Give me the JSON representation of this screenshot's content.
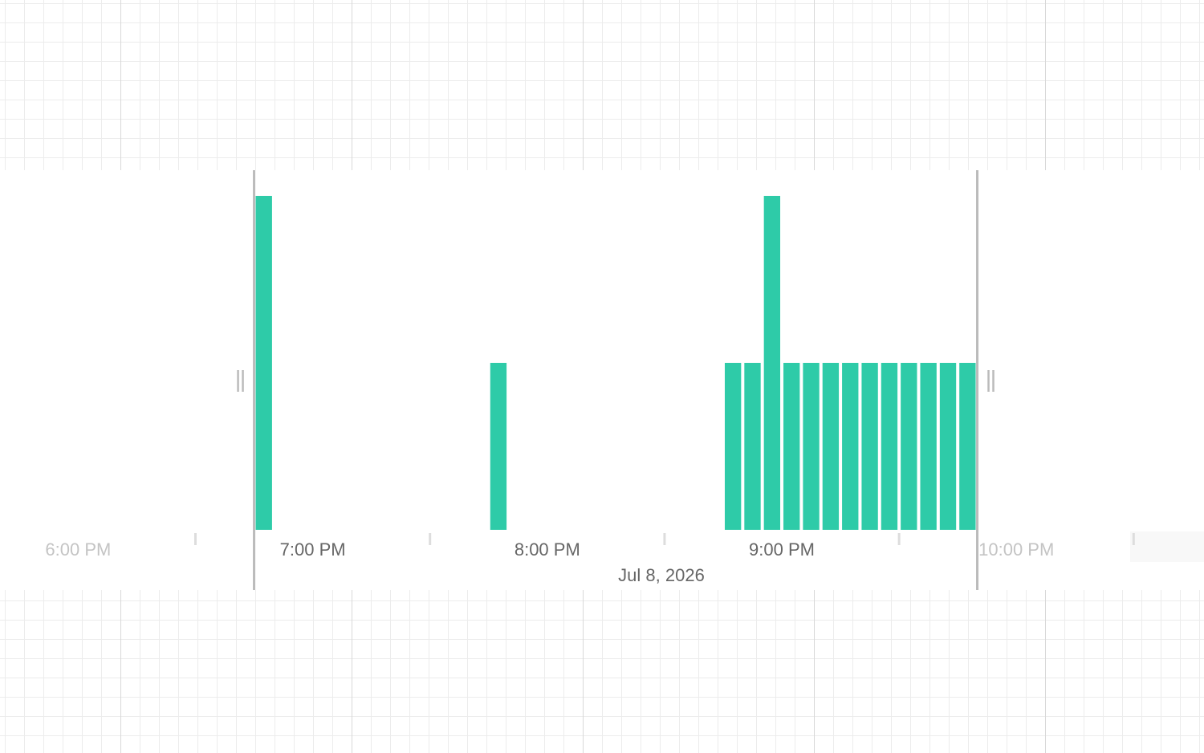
{
  "chart_data": {
    "type": "histogram",
    "bins": [
      45,
      50,
      55,
      60,
      65,
      70,
      75,
      80,
      85,
      90,
      95,
      100,
      105,
      110,
      115,
      120,
      125,
      130,
      135,
      140,
      145,
      150,
      155,
      160,
      165,
      170,
      175,
      180,
      185,
      190,
      195,
      200,
      205,
      210,
      215,
      220,
      225,
      230
    ],
    "values": [
      2,
      0,
      0,
      0,
      0,
      0,
      0,
      0,
      0,
      0,
      0,
      0,
      1,
      0,
      0,
      0,
      0,
      0,
      0,
      0,
      0,
      0,
      0,
      0,
      1,
      1,
      2,
      1,
      1,
      1,
      1,
      1,
      1,
      1,
      1,
      1,
      1
    ],
    "color": "#2ecba8",
    "xlim": [
      -20,
      288
    ],
    "ylim": [
      0,
      2
    ],
    "xticks": [
      {
        "value": 0,
        "label": "6:00 PM"
      },
      {
        "value": 60,
        "label": "7:00 PM"
      },
      {
        "value": 120,
        "label": "8:00 PM"
      },
      {
        "value": 180,
        "label": "9:00 PM"
      },
      {
        "value": 240,
        "label": "10:00 PM"
      }
    ],
    "minor_xticks": [
      30,
      90,
      150,
      210,
      270
    ],
    "selection": [
      45,
      230
    ],
    "date": "Jul 8, 2026"
  }
}
